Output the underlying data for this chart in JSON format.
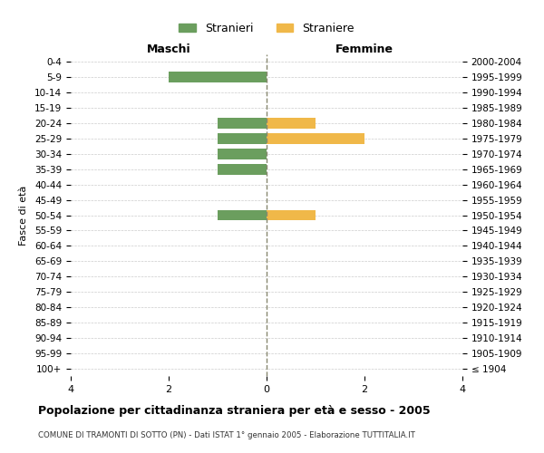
{
  "age_groups": [
    "100+",
    "95-99",
    "90-94",
    "85-89",
    "80-84",
    "75-79",
    "70-74",
    "65-69",
    "60-64",
    "55-59",
    "50-54",
    "45-49",
    "40-44",
    "35-39",
    "30-34",
    "25-29",
    "20-24",
    "15-19",
    "10-14",
    "5-9",
    "0-4"
  ],
  "birth_years": [
    "≤ 1904",
    "1905-1909",
    "1910-1914",
    "1915-1919",
    "1920-1924",
    "1925-1929",
    "1930-1934",
    "1935-1939",
    "1940-1944",
    "1945-1949",
    "1950-1954",
    "1955-1959",
    "1960-1964",
    "1965-1969",
    "1970-1974",
    "1975-1979",
    "1980-1984",
    "1985-1989",
    "1990-1994",
    "1995-1999",
    "2000-2004"
  ],
  "males": [
    0,
    0,
    0,
    0,
    0,
    0,
    0,
    0,
    0,
    0,
    1,
    0,
    0,
    1,
    1,
    1,
    1,
    0,
    0,
    2,
    0
  ],
  "females": [
    0,
    0,
    0,
    0,
    0,
    0,
    0,
    0,
    0,
    0,
    1,
    0,
    0,
    0,
    0,
    2,
    1,
    0,
    0,
    0,
    0
  ],
  "male_color": "#6b9e5e",
  "female_color": "#f0b849",
  "grid_color": "#cccccc",
  "center_line_color": "#888870",
  "xlim": 4,
  "title": "Popolazione per cittadinanza straniera per età e sesso - 2005",
  "subtitle": "COMUNE DI TRAMONTI DI SOTTO (PN) - Dati ISTAT 1° gennaio 2005 - Elaborazione TUTTITALIA.IT",
  "ylabel_left": "Fasce di età",
  "maschi_label": "Maschi",
  "femmine_label": "Femmine",
  "legend_stranieri": "Stranieri",
  "legend_straniere": "Straniere",
  "bar_height": 0.7,
  "background_color": "#ffffff"
}
